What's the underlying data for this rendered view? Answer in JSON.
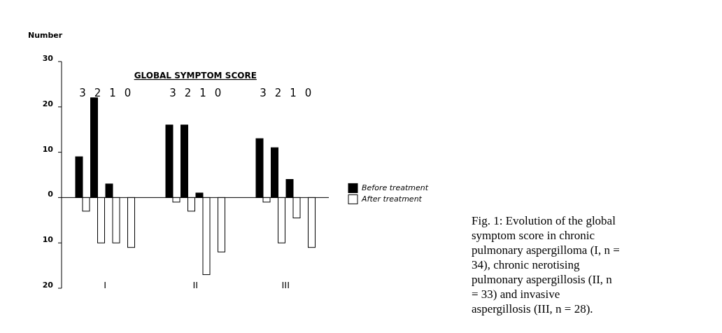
{
  "chart_data": {
    "type": "bar",
    "xlabel": "GLOBAL SYMPTOM SCORE",
    "ylabel": "Number",
    "categories": [
      "3",
      "2",
      "1",
      "0",
      null,
      null,
      "3",
      "2",
      "1",
      "0",
      null,
      null,
      "3",
      "2",
      "1",
      "0"
    ],
    "series": [
      {
        "name": "Before treatment",
        "color": "#000000",
        "values": [
          9,
          22,
          3,
          0,
          null,
          null,
          16,
          16,
          1,
          0,
          null,
          null,
          13,
          11,
          4,
          0
        ]
      },
      {
        "name": "After treatment",
        "color": "#ffffff",
        "values": [
          -3,
          -10,
          -10,
          -11,
          null,
          null,
          -1,
          -3,
          -17,
          -12,
          null,
          null,
          -1,
          -10,
          -4.5,
          -11
        ]
      }
    ],
    "ylim": [
      -20,
      30
    ],
    "yticks": [
      30,
      20,
      10,
      0,
      {
        "value": -10,
        "label": "10"
      },
      {
        "value": -20,
        "label": "20"
      }
    ],
    "legend": "right",
    "annotations": [
      "I",
      "II",
      "III",
      "Fig. 1: Evolution of the global symptom score in chronic pulmonary aspergilloma (I, n = 34), chronic nerotising pulmonary aspergillosis (II, n = 33) and invasive aspergillosis (III, n = 28)."
    ]
  }
}
